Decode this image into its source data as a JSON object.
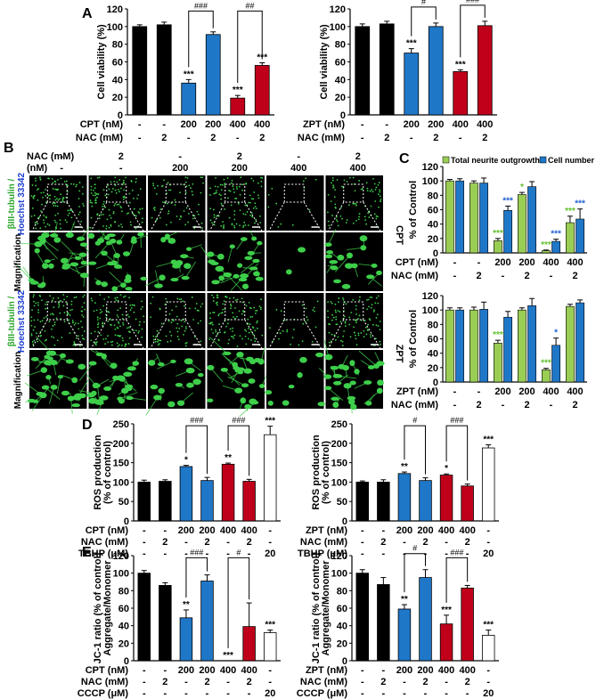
{
  "colors": {
    "black": "#000000",
    "blue": "#1f77c8",
    "red": "#c0001a",
    "white": "#ffffff",
    "green": "#9acd54",
    "green_text": "#5fbf2a",
    "blue_text": "#1f5fd0",
    "micro_bg": "#000000",
    "cell_green": "#3ecf4a"
  },
  "panel_labels": {
    "A": "A",
    "B": "B",
    "C": "C",
    "D": "D",
    "E": "E"
  },
  "panel_A": {
    "ylabel": "Cell viability (%)",
    "yticks": [
      "0",
      "20",
      "40",
      "60",
      "80",
      "100",
      "120"
    ],
    "left": {
      "rows": [
        {
          "label": "CPT (nM)",
          "vals": [
            "-",
            "-",
            "200",
            "200",
            "400",
            "400"
          ]
        },
        {
          "label": "NAC (mM)",
          "vals": [
            "-",
            "2",
            "-",
            "2",
            "-",
            "2"
          ]
        }
      ]
    },
    "right": {
      "rows": [
        {
          "label": "ZPT (nM)",
          "vals": [
            "-",
            "-",
            "200",
            "200",
            "400",
            "400"
          ]
        },
        {
          "label": "NAC (mM)",
          "vals": [
            "-",
            "2",
            "-",
            "2",
            "-",
            "2"
          ]
        }
      ]
    }
  },
  "panel_B": {
    "nac_label": "NAC (mM)",
    "nm_label": "(nM)",
    "nac_vals": [
      "-",
      "2",
      "-",
      "2",
      "-",
      "2"
    ],
    "nm_vals": [
      "-",
      "-",
      "200",
      "200",
      "400",
      "400"
    ],
    "row_label_1a": "βIII-tubulin /",
    "row_label_1b": "Hoechst 33342",
    "row_label_mag": "Magnification",
    "cpt_label": "CPT",
    "zpt_label": "ZPT"
  },
  "panel_C": {
    "legend": [
      "Total neurite outgrowth",
      "Cell number"
    ],
    "ylabel": "% of Control",
    "yticks": [
      "0",
      "20",
      "40",
      "60",
      "80",
      "100",
      "120"
    ],
    "top": {
      "rows": [
        {
          "label": "CPT (nM)",
          "vals": [
            "-",
            "-",
            "200",
            "200",
            "400",
            "400"
          ]
        },
        {
          "label": "NAC (mM)",
          "vals": [
            "-",
            "2",
            "-",
            "2",
            "-",
            "2"
          ]
        }
      ]
    },
    "bottom": {
      "rows": [
        {
          "label": "ZPT (nM)",
          "vals": [
            "-",
            "-",
            "200",
            "200",
            "400",
            "400"
          ]
        },
        {
          "label": "NAC (mM)",
          "vals": [
            "-",
            "2",
            "-",
            "2",
            "-",
            "2"
          ]
        }
      ]
    }
  },
  "panel_D": {
    "ylabel1": "ROS production",
    "ylabel2": "(% of control)",
    "yticks": [
      "0",
      "50",
      "100",
      "150",
      "200",
      "250"
    ],
    "left": {
      "rows": [
        {
          "label": "CPT (nM)",
          "vals": [
            "-",
            "-",
            "200",
            "200",
            "400",
            "400",
            "-"
          ]
        },
        {
          "label": "NAC (mM)",
          "vals": [
            "-",
            "2",
            "-",
            "2",
            "-",
            "2",
            "-"
          ]
        },
        {
          "label": "TBHP (μM)",
          "vals": [
            "-",
            "-",
            "-",
            "-",
            "-",
            "-",
            "20"
          ]
        }
      ]
    },
    "right": {
      "rows": [
        {
          "label": "ZPT (nM)",
          "vals": [
            "-",
            "-",
            "200",
            "200",
            "400",
            "400",
            "-"
          ]
        },
        {
          "label": "NAC (mM)",
          "vals": [
            "-",
            "2",
            "-",
            "2",
            "-",
            "2",
            "-"
          ]
        },
        {
          "label": "TBHP (μM)",
          "vals": [
            "-",
            "-",
            "-",
            "-",
            "-",
            "-",
            "20"
          ]
        }
      ]
    }
  },
  "panel_E": {
    "ylabel1": "JC-1 ratio (% of control)",
    "ylabel2": "Aggregate/Monomer",
    "yticks": [
      "0",
      "20",
      "40",
      "60",
      "80",
      "100",
      "120"
    ],
    "left": {
      "rows": [
        {
          "label": "CPT (nM)",
          "vals": [
            "-",
            "-",
            "200",
            "200",
            "400",
            "400",
            "-"
          ]
        },
        {
          "label": "NAC (mM)",
          "vals": [
            "-",
            "2",
            "-",
            "2",
            "-",
            "2",
            "-"
          ]
        },
        {
          "label": "CCCP (μM)",
          "vals": [
            "-",
            "-",
            "-",
            "-",
            "-",
            "-",
            "20"
          ]
        }
      ]
    },
    "right": {
      "rows": [
        {
          "label": "ZPT (nM)",
          "vals": [
            "-",
            "-",
            "200",
            "200",
            "400",
            "400",
            "-"
          ]
        },
        {
          "label": "NAC (mM)",
          "vals": [
            "-",
            "2",
            "-",
            "2",
            "-",
            "2",
            "-"
          ]
        },
        {
          "label": "CCCP (μM)",
          "vals": [
            "-",
            "-",
            "-",
            "-",
            "-",
            "-",
            "20"
          ]
        }
      ]
    }
  },
  "chart_data": [
    {
      "id": "A_left",
      "type": "bar",
      "ylim": [
        0,
        120
      ],
      "values": [
        100,
        102,
        36,
        91,
        19,
        56
      ],
      "errors": [
        2,
        3,
        4,
        3,
        3,
        3
      ],
      "colors": [
        "black",
        "black",
        "blue",
        "blue",
        "red",
        "red"
      ],
      "stars": [
        "",
        "",
        "***",
        "",
        "***",
        "***"
      ],
      "brackets": [
        {
          "from": 2,
          "to": 3,
          "label": "###"
        },
        {
          "from": 4,
          "to": 5,
          "label": "##"
        }
      ]
    },
    {
      "id": "A_right",
      "type": "bar",
      "ylim": [
        0,
        120
      ],
      "values": [
        100,
        103,
        70,
        100,
        49,
        101
      ],
      "errors": [
        3,
        3,
        5,
        4,
        2,
        5
      ],
      "colors": [
        "black",
        "black",
        "blue",
        "blue",
        "red",
        "red"
      ],
      "stars": [
        "",
        "",
        "***",
        "",
        "***",
        ""
      ],
      "brackets": [
        {
          "from": 2,
          "to": 3,
          "label": "#"
        },
        {
          "from": 4,
          "to": 5,
          "label": "###"
        }
      ]
    },
    {
      "id": "C_top",
      "type": "bar",
      "ylim": [
        0,
        120
      ],
      "series": [
        {
          "name": "Total neurite outgrowth",
          "values": [
            100,
            97,
            17,
            81,
            3,
            42
          ],
          "errors": [
            2,
            3,
            3,
            3,
            1,
            9
          ]
        },
        {
          "name": "Cell number",
          "values": [
            100,
            97,
            59,
            92,
            16,
            47
          ],
          "errors": [
            3,
            7,
            6,
            7,
            3,
            14
          ]
        }
      ],
      "stars_green": [
        "",
        "",
        "***",
        "*",
        "***",
        "***"
      ],
      "stars_blue": [
        "",
        "",
        "***",
        "",
        "***",
        "***"
      ],
      "brackets": [
        {
          "from": 2,
          "to": 3,
          "label": "###",
          "color": "green"
        },
        {
          "from": 2,
          "to": 3,
          "label": "#",
          "color": "blue"
        },
        {
          "from": 4,
          "to": 5,
          "label": "#",
          "color": "green"
        }
      ]
    },
    {
      "id": "C_bottom",
      "type": "bar",
      "ylim": [
        0,
        120
      ],
      "series": [
        {
          "name": "Total neurite outgrowth",
          "values": [
            100,
            100,
            54,
            100,
            17,
            105
          ],
          "errors": [
            3,
            4,
            4,
            3,
            2,
            3
          ],
          "colors": "green"
        },
        {
          "name": "Cell number",
          "values": [
            100,
            101,
            90,
            106,
            51,
            110
          ],
          "errors": [
            3,
            10,
            8,
            10,
            10,
            4
          ]
        }
      ],
      "stars_green": [
        "",
        "",
        "***",
        "",
        "***",
        ""
      ],
      "stars_blue": [
        "",
        "",
        "",
        "",
        "*",
        ""
      ],
      "brackets": [
        {
          "from": 2,
          "to": 3,
          "label": "###",
          "color": "green"
        },
        {
          "from": 4,
          "to": 5,
          "label": "###",
          "color": "green"
        },
        {
          "from": 4,
          "to": 5,
          "label": "##",
          "color": "blue"
        }
      ]
    },
    {
      "id": "D_left",
      "type": "bar",
      "ylim": [
        0,
        250
      ],
      "values": [
        100,
        102,
        140,
        104,
        146,
        102,
        222
      ],
      "errors": [
        5,
        4,
        3,
        8,
        3,
        5,
        22
      ],
      "colors": [
        "black",
        "black",
        "blue",
        "blue",
        "red",
        "red",
        "white"
      ],
      "stars": [
        "",
        "",
        "*",
        "",
        "**",
        "",
        "***"
      ],
      "brackets": [
        {
          "from": 2,
          "to": 3,
          "label": "###"
        },
        {
          "from": 4,
          "to": 5,
          "label": "###"
        }
      ]
    },
    {
      "id": "D_right",
      "type": "bar",
      "ylim": [
        0,
        250
      ],
      "values": [
        100,
        100,
        122,
        104,
        118,
        90,
        188
      ],
      "errors": [
        3,
        6,
        4,
        7,
        3,
        5,
        8
      ],
      "colors": [
        "black",
        "black",
        "blue",
        "blue",
        "red",
        "red",
        "white"
      ],
      "stars": [
        "",
        "",
        "**",
        "",
        "*",
        "",
        "***"
      ],
      "brackets": [
        {
          "from": 2,
          "to": 3,
          "label": "#"
        },
        {
          "from": 4,
          "to": 5,
          "label": "###"
        }
      ]
    },
    {
      "id": "E_left",
      "type": "bar",
      "ylim": [
        0,
        120
      ],
      "values": [
        100,
        86,
        49,
        91,
        0,
        39,
        32
      ],
      "errors": [
        3,
        3,
        9,
        7,
        0,
        27,
        3
      ],
      "colors": [
        "black",
        "black",
        "blue",
        "blue",
        "red",
        "red",
        "white"
      ],
      "stars": [
        "",
        "",
        "**",
        "",
        "***",
        "",
        "***"
      ],
      "brackets": [
        {
          "from": 2,
          "to": 3,
          "label": "###"
        },
        {
          "from": 4,
          "to": 5,
          "label": "#"
        }
      ]
    },
    {
      "id": "E_right",
      "type": "bar",
      "ylim": [
        0,
        120
      ],
      "values": [
        100,
        87,
        59,
        95,
        42,
        83,
        29
      ],
      "errors": [
        4,
        8,
        5,
        9,
        10,
        3,
        6
      ],
      "colors": [
        "black",
        "black",
        "blue",
        "blue",
        "red",
        "red",
        "white"
      ],
      "stars": [
        "",
        "",
        "**",
        "",
        "***",
        "",
        "***"
      ],
      "brackets": [
        {
          "from": 2,
          "to": 3,
          "label": "#"
        },
        {
          "from": 4,
          "to": 5,
          "label": "###"
        }
      ]
    }
  ]
}
